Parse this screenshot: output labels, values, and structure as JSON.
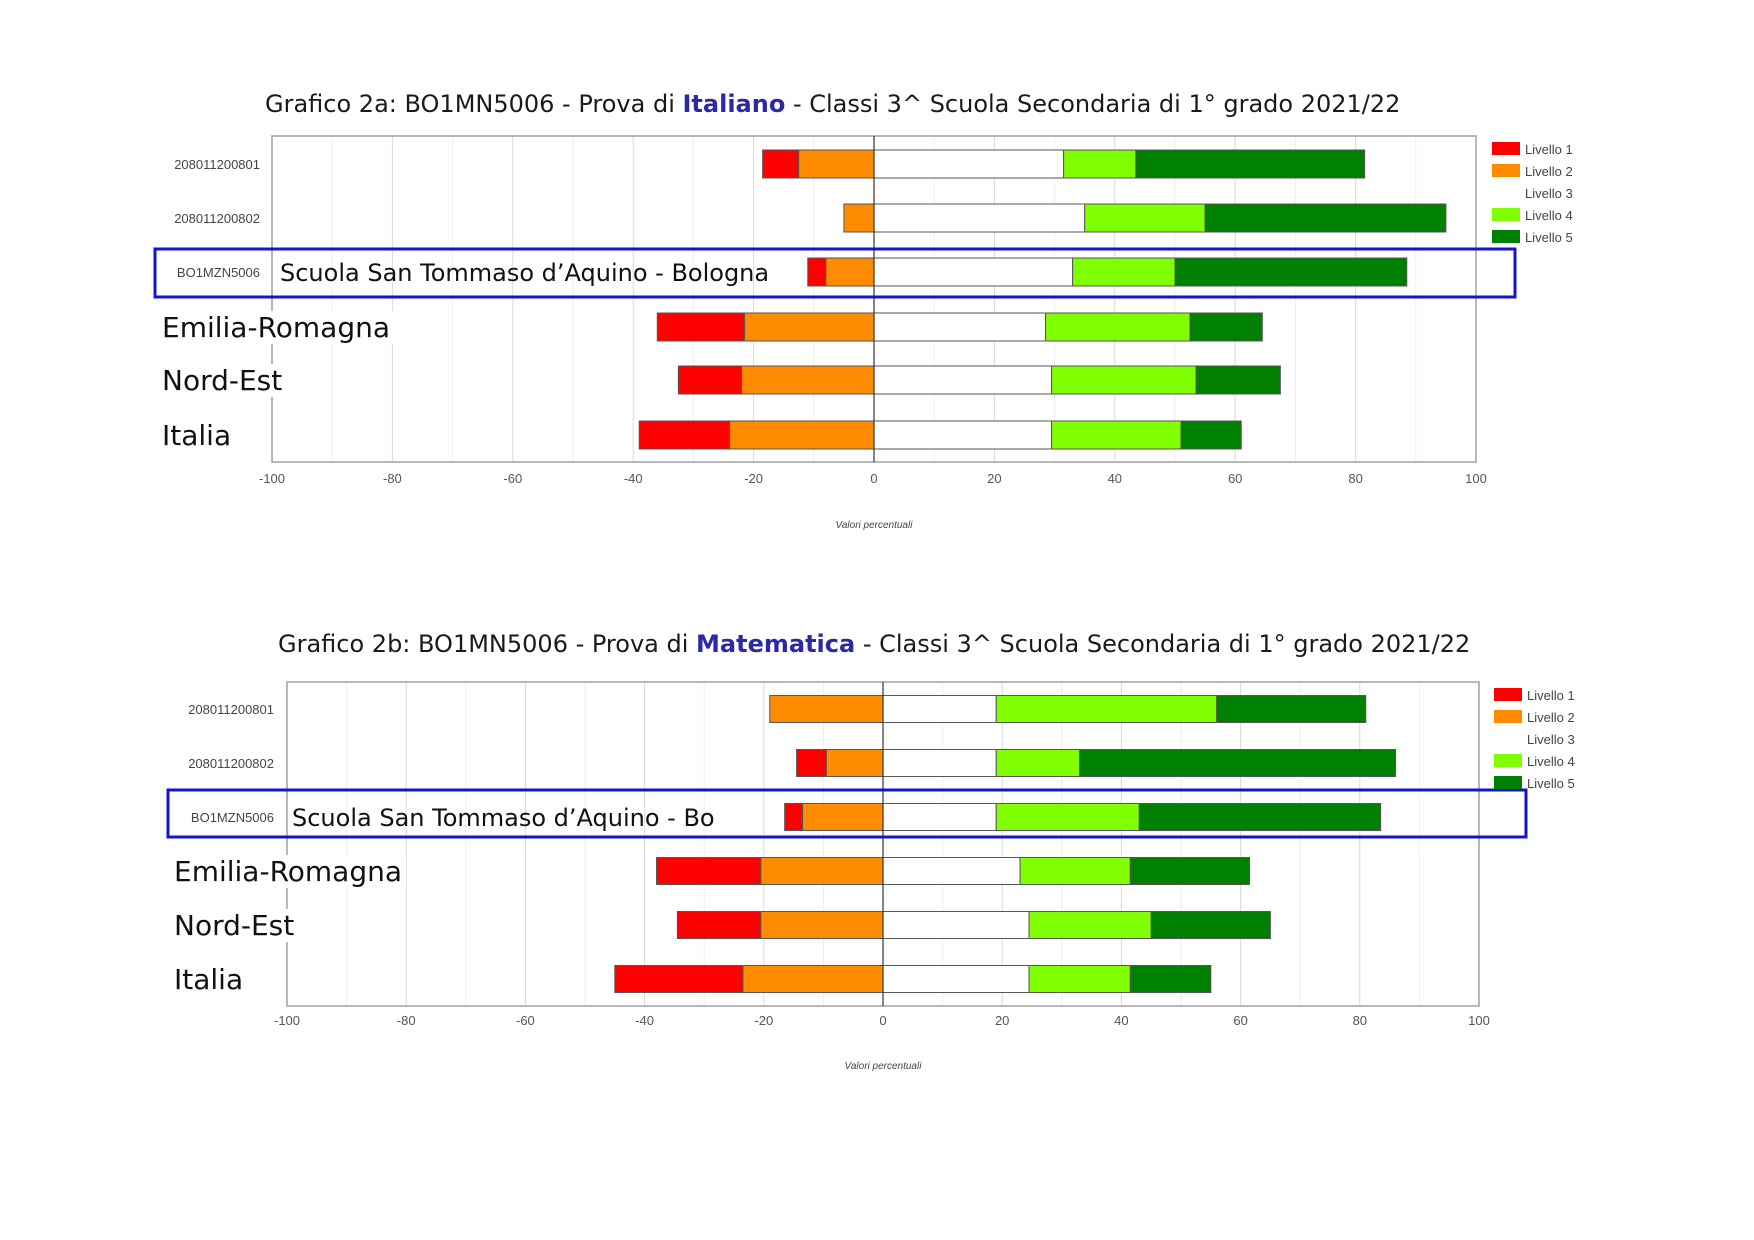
{
  "chart_data": [
    {
      "type": "bar",
      "orientation": "horizontal-diverging-stacked",
      "title": {
        "prefix": "Grafico 2a: BO1MN5006 - Prova di ",
        "subject": "Italiano",
        "suffix": " - Classi 3^ Scuola Secondaria di 1° grado 2021/22"
      },
      "xlabel": "Valori percentuali",
      "xlim": [
        -100,
        100
      ],
      "xticks": [
        -100,
        -80,
        -60,
        -40,
        -20,
        0,
        20,
        40,
        60,
        80,
        100
      ],
      "grid": true,
      "legend_position": "right",
      "levels": [
        "Livello 1",
        "Livello 2",
        "Livello 3",
        "Livello 4",
        "Livello 5"
      ],
      "level_colors": [
        "#ff0000",
        "#ff8c00",
        "#ffffff",
        "#80ff00",
        "#008000"
      ],
      "rows": [
        {
          "code": "208011200801",
          "label": "",
          "values": [
            6,
            12.5,
            31.5,
            12,
            38
          ]
        },
        {
          "code": "208011200802",
          "label": "",
          "values": [
            0,
            5,
            35,
            20,
            40
          ]
        },
        {
          "code": "BO1MZN5006",
          "label": "Scuola San Tommaso d’Aquino - Bologna",
          "highlight": true,
          "values": [
            3,
            8,
            33,
            17,
            38.5
          ]
        },
        {
          "code": "",
          "label": "Emilia-Romagna",
          "values": [
            14.5,
            21.5,
            28.5,
            24,
            12
          ]
        },
        {
          "code": "",
          "label": "Nord-Est",
          "values": [
            10.5,
            22,
            29.5,
            24,
            14
          ]
        },
        {
          "code": "",
          "label": "Italia",
          "values": [
            15,
            24,
            29.5,
            21.5,
            10
          ]
        }
      ]
    },
    {
      "type": "bar",
      "orientation": "horizontal-diverging-stacked",
      "title": {
        "prefix": "Grafico 2b: BO1MN5006 - Prova di ",
        "subject": "Matematica",
        "suffix": " - Classi 3^ Scuola Secondaria di 1° grado 2021/22"
      },
      "xlabel": "Valori percentuali",
      "xlim": [
        -100,
        100
      ],
      "xticks": [
        -100,
        -80,
        -60,
        -40,
        -20,
        0,
        20,
        40,
        60,
        80,
        100
      ],
      "grid": true,
      "legend_position": "right",
      "levels": [
        "Livello 1",
        "Livello 2",
        "Livello 3",
        "Livello 4",
        "Livello 5"
      ],
      "level_colors": [
        "#ff0000",
        "#ff8c00",
        "#ffffff",
        "#80ff00",
        "#008000"
      ],
      "rows": [
        {
          "code": "208011200801",
          "label": "",
          "values": [
            0,
            19,
            19,
            37,
            25
          ]
        },
        {
          "code": "208011200802",
          "label": "",
          "values": [
            5,
            9.5,
            19,
            14,
            53
          ]
        },
        {
          "code": "BO1MZN5006",
          "label": "Scuola San Tommaso d’Aquino - Bo",
          "highlight": true,
          "values": [
            3,
            13.5,
            19,
            24,
            40.5
          ]
        },
        {
          "code": "",
          "label": "Emilia-Romagna",
          "values": [
            17.5,
            20.5,
            23,
            18.5,
            20
          ]
        },
        {
          "code": "",
          "label": "Nord-Est",
          "values": [
            14,
            20.5,
            24.5,
            20.5,
            20
          ]
        },
        {
          "code": "",
          "label": "Italia",
          "values": [
            21.5,
            23.5,
            24.5,
            17,
            13.5
          ]
        }
      ]
    }
  ]
}
